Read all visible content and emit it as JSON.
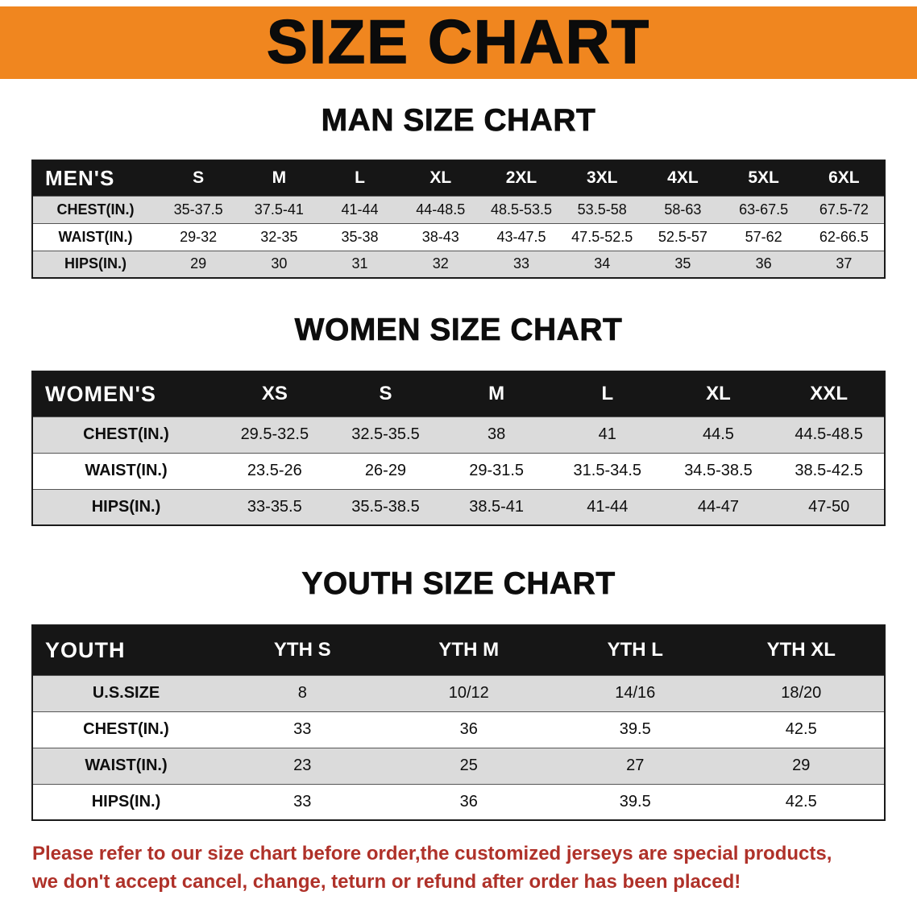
{
  "banner": {
    "title": "SIZE CHART",
    "background": "#F0861F",
    "text_color": "#0B0B0B"
  },
  "sections": [
    {
      "id": "mens",
      "title": "MAN SIZE CHART",
      "table": {
        "header": [
          "MEN'S",
          "S",
          "M",
          "L",
          "XL",
          "2XL",
          "3XL",
          "4XL",
          "5XL",
          "6XL"
        ],
        "rows": [
          [
            "CHEST(IN.)",
            "35-37.5",
            "37.5-41",
            "41-44",
            "44-48.5",
            "48.5-53.5",
            "53.5-58",
            "58-63",
            "63-67.5",
            "67.5-72"
          ],
          [
            "WAIST(IN.)",
            "29-32",
            "32-35",
            "35-38",
            "38-43",
            "43-47.5",
            "47.5-52.5",
            "52.5-57",
            "57-62",
            "62-66.5"
          ],
          [
            "HIPS(IN.)",
            "29",
            "30",
            "31",
            "32",
            "33",
            "34",
            "35",
            "36",
            "37"
          ]
        ]
      }
    },
    {
      "id": "womens",
      "title": "WOMEN SIZE CHART",
      "table": {
        "header": [
          "WOMEN'S",
          "XS",
          "S",
          "M",
          "L",
          "XL",
          "XXL"
        ],
        "rows": [
          [
            "CHEST(IN.)",
            "29.5-32.5",
            "32.5-35.5",
            "38",
            "41",
            "44.5",
            "44.5-48.5"
          ],
          [
            "WAIST(IN.)",
            "23.5-26",
            "26-29",
            "29-31.5",
            "31.5-34.5",
            "34.5-38.5",
            "38.5-42.5"
          ],
          [
            "HIPS(IN.)",
            "33-35.5",
            "35.5-38.5",
            "38.5-41",
            "41-44",
            "44-47",
            "47-50"
          ]
        ]
      }
    },
    {
      "id": "youth",
      "title": "YOUTH SIZE CHART",
      "table": {
        "header": [
          "YOUTH",
          "YTH S",
          "YTH M",
          "YTH L",
          "YTH XL"
        ],
        "rows": [
          [
            "U.S.SIZE",
            "8",
            "10/12",
            "14/16",
            "18/20"
          ],
          [
            "CHEST(IN.)",
            "33",
            "36",
            "39.5",
            "42.5"
          ],
          [
            "WAIST(IN.)",
            "23",
            "25",
            "27",
            "29"
          ],
          [
            "HIPS(IN.)",
            "33",
            "36",
            "39.5",
            "42.5"
          ]
        ]
      }
    }
  ],
  "disclaimer": {
    "lines": [
      "Please refer to our size chart before order,the customized jerseys are special products,",
      "we don't accept cancel, change, teturn or refund after order has been placed!"
    ],
    "color": "#AF3129"
  },
  "colors": {
    "banner_orange": "#F0861F",
    "table_header_black": "#161616",
    "row_gray": "#DBDBDB",
    "row_white": "#FFFFFF",
    "disclaimer_red": "#AF3129"
  }
}
